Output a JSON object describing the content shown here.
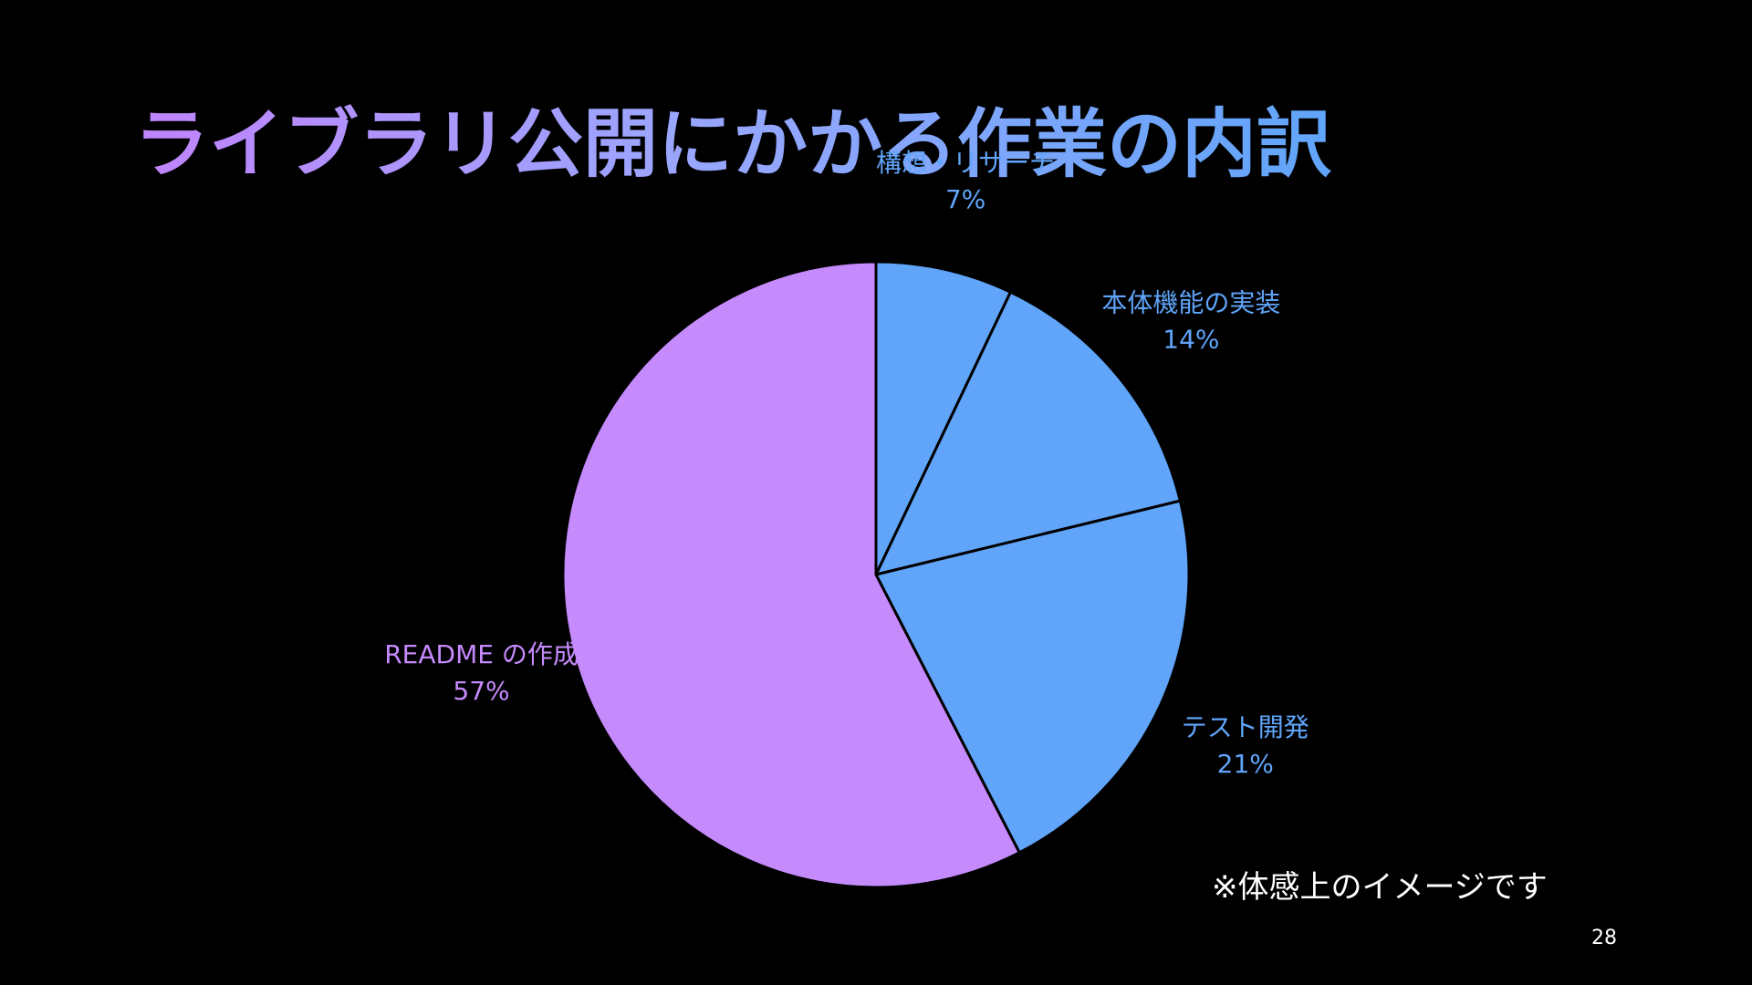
{
  "slide": {
    "title": "ライブラリ公開にかかる作業の内訳",
    "note": "※体感上のイメージです",
    "page_number": "28"
  },
  "chart_data": {
    "type": "pie",
    "title": "",
    "start_angle_deg": 0,
    "direction": "clockwise",
    "slice_border_color": "#000000",
    "slices": [
      {
        "label": "構想・リサーチ",
        "value": 7,
        "value_label": "7%",
        "color": "#60a5fa"
      },
      {
        "label": "本体機能の実装",
        "value": 14,
        "value_label": "14%",
        "color": "#60a5fa"
      },
      {
        "label": "テスト開発",
        "value": 21,
        "value_label": "21%",
        "color": "#60a5fa"
      },
      {
        "label": "README の作成",
        "value": 57,
        "value_label": "57%",
        "color": "#c58afc"
      }
    ]
  },
  "colors": {
    "background": "#000000",
    "title_gradient_start": "#c084fc",
    "title_gradient_end": "#60a5fa",
    "accent_blue": "#60a5fa",
    "accent_purple": "#c58afc"
  }
}
